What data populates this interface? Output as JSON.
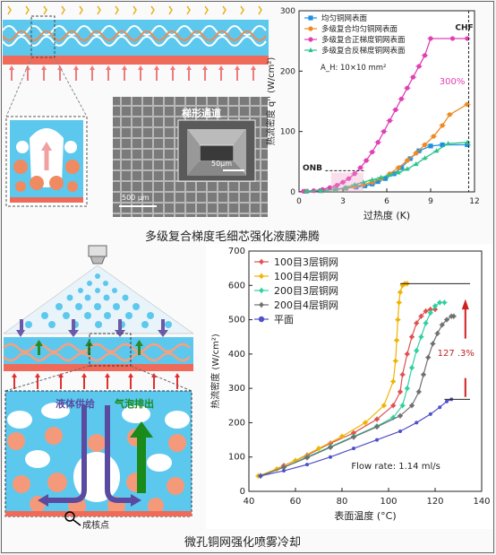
{
  "captions": {
    "top": "多级复合梯度毛细芯强化液膜沸腾",
    "bottom": "微孔铜网强化喷雾冷却"
  },
  "top_illustration": {
    "sem_label": "梯形通道",
    "scale_small": "50μm",
    "scale_large": "500 μm"
  },
  "bottom_illustration": {
    "liquid_label": "液体供给",
    "bubble_label": "气泡排出",
    "nucleation_label": "成核点"
  },
  "colors": {
    "series_a1": "#1e90e0",
    "series_a2": "#ee8a22",
    "series_a3": "#e040b4",
    "series_a4": "#2cc28a",
    "series_b1": "#e05050",
    "series_b2": "#f0b400",
    "series_b3": "#30d0a0",
    "series_b4": "#707070",
    "series_b5": "#5050c8"
  },
  "chart_data": [
    {
      "type": "line",
      "xlabel": "过热度 (K)",
      "ylabel": "热流密度 q'' (W/cm²)",
      "xlim": [
        0,
        12
      ],
      "ylim": [
        0,
        300
      ],
      "xticks": [
        0,
        3,
        6,
        9,
        12
      ],
      "yticks": [
        0,
        100,
        200,
        300
      ],
      "legend_position": "top-left",
      "annotations": {
        "area": "A_H: 10×10 mm²",
        "chf": "CHF",
        "onb": "ONB",
        "increase": "300%"
      },
      "series": [
        {
          "name": "均匀铜网表面",
          "marker": "square",
          "x": [
            0.5,
            1.5,
            2.5,
            3.2,
            3.9,
            4.5,
            5.0,
            5.4,
            5.9,
            6.5,
            7.0,
            7.6,
            8.2,
            9.0,
            9.8,
            11.5
          ],
          "y": [
            1,
            2,
            4,
            6,
            8,
            10,
            13,
            17,
            22,
            30,
            40,
            55,
            68,
            76,
            78,
            78
          ]
        },
        {
          "name": "多级复合均匀铜网表面",
          "marker": "circle",
          "x": [
            0.5,
            1.5,
            2.5,
            3.2,
            3.8,
            4.4,
            5.0,
            5.6,
            6.2,
            6.8,
            7.4,
            8.0,
            8.6,
            9.2,
            9.8,
            10.3,
            11.5
          ],
          "y": [
            1,
            2,
            4,
            6,
            9,
            12,
            16,
            22,
            30,
            40,
            52,
            64,
            78,
            92,
            110,
            128,
            145
          ]
        },
        {
          "name": "多级复合正梯度铜网表面",
          "marker": "circle",
          "x": [
            0.3,
            1.0,
            1.6,
            2.1,
            2.6,
            3.0,
            3.4,
            3.8,
            4.2,
            4.6,
            5.0,
            5.4,
            5.8,
            6.2,
            6.6,
            7.0,
            7.4,
            7.8,
            8.2,
            8.6,
            9.0,
            10.5,
            11.5
          ],
          "y": [
            1,
            2,
            4,
            7,
            11,
            16,
            22,
            30,
            40,
            52,
            66,
            82,
            100,
            118,
            136,
            154,
            172,
            190,
            208,
            226,
            254,
            254,
            254
          ]
        },
        {
          "name": "多级复合反梯度铜网表面",
          "marker": "triangle",
          "x": [
            0.5,
            1.5,
            2.5,
            3.2,
            3.8,
            4.4,
            5.0,
            5.6,
            6.2,
            6.8,
            7.4,
            8.0,
            8.6,
            9.4,
            10.2,
            11.5
          ],
          "y": [
            1,
            2,
            4,
            7,
            12,
            16,
            20,
            24,
            28,
            32,
            38,
            46,
            56,
            68,
            80,
            82
          ]
        }
      ]
    },
    {
      "type": "line",
      "xlabel": "表面温度 (°C)",
      "ylabel": "热流密度 (W/cm²)",
      "xlim": [
        40,
        140
      ],
      "ylim": [
        0,
        700
      ],
      "xticks": [
        40,
        60,
        80,
        100,
        120,
        140
      ],
      "yticks": [
        0,
        100,
        200,
        300,
        400,
        500,
        600,
        700
      ],
      "legend_position": "top-left",
      "annotations": {
        "increase": "127 .3%",
        "flow_rate": "Flow rate: 1.14 ml/s"
      },
      "series": [
        {
          "name": "100目3层铜网",
          "x": [
            45,
            55,
            65,
            75,
            85,
            95,
            102,
            105,
            106,
            108,
            110,
            112,
            114,
            116,
            118,
            120
          ],
          "y": [
            45,
            75,
            105,
            140,
            170,
            210,
            250,
            290,
            340,
            400,
            450,
            490,
            510,
            525,
            530,
            530
          ]
        },
        {
          "name": "100目4层铜网",
          "x": [
            44,
            52,
            60,
            70,
            80,
            90,
            98,
            102,
            103,
            103.5,
            104,
            104.5,
            105,
            106,
            107,
            108
          ],
          "y": [
            45,
            65,
            90,
            125,
            160,
            200,
            250,
            320,
            380,
            440,
            500,
            550,
            580,
            600,
            605,
            605
          ]
        },
        {
          "name": "200目3层铜网",
          "x": [
            45,
            55,
            65,
            75,
            85,
            95,
            102,
            106,
            108,
            110,
            112,
            114,
            116,
            118,
            120,
            122,
            124
          ],
          "y": [
            45,
            70,
            100,
            130,
            160,
            190,
            215,
            250,
            300,
            360,
            410,
            450,
            490,
            520,
            540,
            550,
            550
          ]
        },
        {
          "name": "200目4层铜网",
          "x": [
            45,
            55,
            65,
            75,
            85,
            95,
            105,
            110,
            113,
            115,
            117,
            119,
            121,
            123,
            125,
            127,
            128
          ],
          "y": [
            45,
            70,
            98,
            128,
            158,
            188,
            220,
            250,
            290,
            340,
            390,
            430,
            460,
            485,
            500,
            510,
            510
          ]
        },
        {
          "name": "平面",
          "x": [
            45,
            55,
            65,
            75,
            85,
            95,
            105,
            112,
            118,
            122,
            125,
            127
          ],
          "y": [
            45,
            60,
            78,
            100,
            125,
            150,
            175,
            200,
            225,
            245,
            262,
            268
          ]
        }
      ]
    }
  ]
}
